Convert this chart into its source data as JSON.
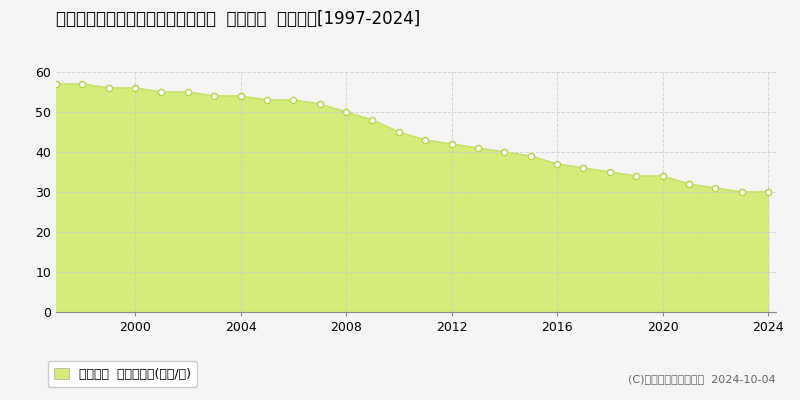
{
  "title": "鹿児島県鹿児島市三和町４８番１５  基準地価  地価推移[1997-2024]",
  "years": [
    1997,
    1998,
    1999,
    2000,
    2001,
    2002,
    2003,
    2004,
    2005,
    2006,
    2007,
    2008,
    2009,
    2010,
    2011,
    2012,
    2013,
    2014,
    2015,
    2016,
    2017,
    2018,
    2019,
    2020,
    2021,
    2022,
    2023,
    2024
  ],
  "values": [
    57,
    57,
    56,
    56,
    55,
    55,
    54,
    54,
    53,
    53,
    52,
    50,
    48,
    45,
    43,
    42,
    41,
    40,
    39,
    37,
    36,
    35,
    34,
    34,
    32,
    31,
    30,
    30
  ],
  "line_color": "#c8e06e",
  "fill_color": "#d4ed7a",
  "marker_color": "#ffffff",
  "marker_edge_color": "#b8d44e",
  "background_color": "#f5f5f5",
  "plot_bg_color": "#f5f5f5",
  "grid_color": "#cccccc",
  "ylim": [
    0,
    60
  ],
  "yticks": [
    0,
    10,
    20,
    30,
    40,
    50,
    60
  ],
  "xticks": [
    2000,
    2004,
    2008,
    2012,
    2016,
    2020,
    2024
  ],
  "legend_label": "基準地価  平均坊単価(万円/坊)",
  "copyright_text": "(C)土地価格ドットコム  2024-10-04",
  "title_fontsize": 12,
  "tick_fontsize": 9,
  "legend_fontsize": 9,
  "copyright_fontsize": 8
}
